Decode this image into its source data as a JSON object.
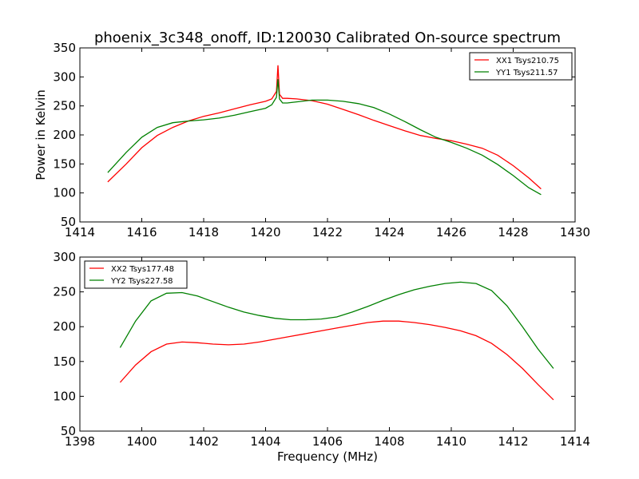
{
  "title": "phoenix_3c348_onoff, ID:120030 Calibrated On-source spectrum",
  "chart_data": [
    {
      "type": "line",
      "xlabel": "",
      "ylabel": "Power in Kelvin",
      "xlim": [
        1414,
        1430
      ],
      "ylim": [
        50,
        350
      ],
      "xticks": [
        1414,
        1416,
        1418,
        1420,
        1422,
        1424,
        1426,
        1428,
        1430
      ],
      "yticks": [
        50,
        100,
        150,
        200,
        250,
        300,
        350
      ],
      "legend_position": "top-right",
      "series": [
        {
          "name": "XX1 Tsys210.75",
          "color": "#ff0000",
          "x": [
            1414.9,
            1415.5,
            1416.0,
            1416.5,
            1417.0,
            1417.5,
            1418.0,
            1418.5,
            1419.0,
            1419.5,
            1420.0,
            1420.2,
            1420.35,
            1420.4,
            1420.45,
            1420.55,
            1420.7,
            1421.0,
            1421.5,
            1422.0,
            1422.5,
            1423.0,
            1423.5,
            1424.0,
            1424.5,
            1425.0,
            1425.5,
            1426.0,
            1426.5,
            1427.0,
            1427.5,
            1428.0,
            1428.5,
            1428.9
          ],
          "y": [
            119,
            150,
            178,
            199,
            213,
            224,
            232,
            238,
            245,
            252,
            258,
            262,
            275,
            320,
            270,
            263,
            263,
            262,
            259,
            253,
            244,
            235,
            225,
            216,
            207,
            199,
            194,
            190,
            184,
            177,
            165,
            147,
            126,
            107
          ]
        },
        {
          "name": "YY1 Tsys211.57",
          "color": "#008000",
          "x": [
            1414.9,
            1415.5,
            1416.0,
            1416.5,
            1417.0,
            1417.5,
            1418.0,
            1418.5,
            1419.0,
            1419.5,
            1420.0,
            1420.2,
            1420.35,
            1420.4,
            1420.45,
            1420.55,
            1420.7,
            1421.0,
            1421.5,
            1422.0,
            1422.5,
            1423.0,
            1423.5,
            1424.0,
            1424.5,
            1425.0,
            1425.5,
            1426.0,
            1426.5,
            1427.0,
            1427.5,
            1428.0,
            1428.5,
            1428.9
          ],
          "y": [
            135,
            170,
            196,
            213,
            221,
            224,
            226,
            229,
            234,
            240,
            246,
            252,
            265,
            296,
            262,
            255,
            255,
            257,
            260,
            260,
            258,
            254,
            247,
            236,
            223,
            209,
            196,
            187,
            177,
            165,
            149,
            130,
            109,
            97
          ]
        }
      ]
    },
    {
      "type": "line",
      "xlabel": "Frequency (MHz)",
      "ylabel": "",
      "xlim": [
        1398,
        1414
      ],
      "ylim": [
        50,
        300
      ],
      "xticks": [
        1398,
        1400,
        1402,
        1404,
        1406,
        1408,
        1410,
        1412,
        1414
      ],
      "yticks": [
        50,
        100,
        150,
        200,
        250,
        300
      ],
      "legend_position": "top-left",
      "series": [
        {
          "name": "XX2 Tsys177.48",
          "color": "#ff0000",
          "x": [
            1399.3,
            1399.8,
            1400.3,
            1400.8,
            1401.3,
            1401.8,
            1402.3,
            1402.8,
            1403.3,
            1403.8,
            1404.3,
            1404.8,
            1405.3,
            1405.8,
            1406.3,
            1406.8,
            1407.3,
            1407.8,
            1408.3,
            1408.8,
            1409.3,
            1409.8,
            1410.3,
            1410.8,
            1411.3,
            1411.8,
            1412.3,
            1412.8,
            1413.3
          ],
          "y": [
            120,
            145,
            164,
            175,
            178,
            177,
            175,
            174,
            175,
            178,
            182,
            186,
            190,
            194,
            198,
            202,
            206,
            208,
            208,
            206,
            203,
            199,
            194,
            187,
            176,
            160,
            140,
            117,
            95
          ]
        },
        {
          "name": "YY2 Tsys227.58",
          "color": "#008000",
          "x": [
            1399.3,
            1399.8,
            1400.3,
            1400.8,
            1401.3,
            1401.8,
            1402.3,
            1402.8,
            1403.3,
            1403.8,
            1404.3,
            1404.8,
            1405.3,
            1405.8,
            1406.3,
            1406.8,
            1407.3,
            1407.8,
            1408.3,
            1408.8,
            1409.3,
            1409.8,
            1410.3,
            1410.8,
            1411.3,
            1411.8,
            1412.3,
            1412.8,
            1413.3
          ],
          "y": [
            170,
            208,
            237,
            248,
            249,
            244,
            236,
            228,
            221,
            216,
            212,
            210,
            210,
            211,
            214,
            221,
            229,
            238,
            246,
            253,
            258,
            262,
            264,
            262,
            252,
            230,
            200,
            168,
            140
          ]
        }
      ]
    }
  ]
}
